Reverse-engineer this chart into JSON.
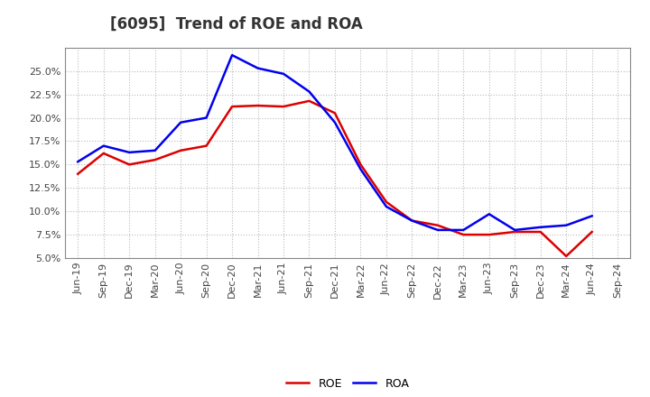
{
  "title": "[6095]  Trend of ROE and ROA",
  "x_labels": [
    "Jun-19",
    "Sep-19",
    "Dec-19",
    "Mar-20",
    "Jun-20",
    "Sep-20",
    "Dec-20",
    "Mar-21",
    "Jun-21",
    "Sep-21",
    "Dec-21",
    "Mar-22",
    "Jun-22",
    "Sep-22",
    "Dec-22",
    "Mar-23",
    "Jun-23",
    "Sep-23",
    "Dec-23",
    "Mar-24",
    "Jun-24",
    "Sep-24"
  ],
  "roe": [
    14.0,
    16.2,
    15.0,
    15.5,
    16.5,
    17.0,
    21.2,
    21.3,
    21.2,
    21.8,
    20.5,
    15.0,
    11.0,
    9.0,
    8.5,
    7.5,
    7.5,
    7.8,
    7.8,
    5.2,
    7.8,
    null
  ],
  "roa": [
    15.3,
    17.0,
    16.3,
    16.5,
    19.5,
    20.0,
    26.7,
    25.3,
    24.7,
    22.8,
    19.5,
    14.5,
    10.5,
    9.0,
    8.0,
    8.0,
    9.7,
    8.0,
    8.3,
    8.5,
    9.5,
    null
  ],
  "roe_color": "#dd0000",
  "roa_color": "#0000ee",
  "bg_color": "#ffffff",
  "plot_bg_color": "#ffffff",
  "grid_color": "#bbbbbb",
  "ylim": [
    5.0,
    27.5
  ],
  "yticks": [
    5.0,
    7.5,
    10.0,
    12.5,
    15.0,
    17.5,
    20.0,
    22.5,
    25.0
  ],
  "line_width": 1.8,
  "title_fontsize": 12,
  "tick_fontsize": 8,
  "legend_fontsize": 9
}
